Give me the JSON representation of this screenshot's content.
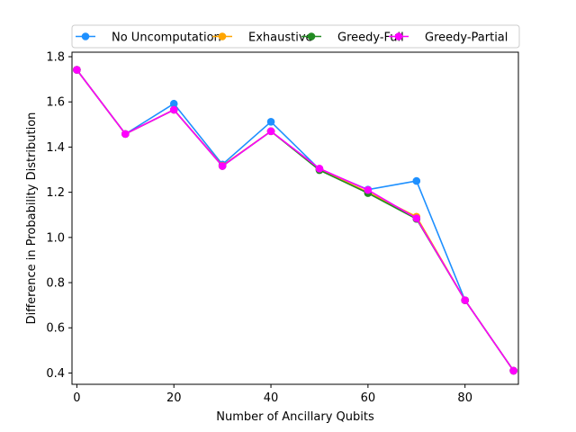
{
  "chart_data": {
    "type": "line",
    "title": "",
    "xlabel": "Number of Ancillary Qubits",
    "ylabel": "Difference in Probability Distribution",
    "xlim": [
      -1,
      91
    ],
    "ylim": [
      0.35,
      1.82
    ],
    "xticks": [
      0,
      20,
      40,
      60,
      80
    ],
    "xtick_labels": [
      "0",
      "20",
      "40",
      "60",
      "80"
    ],
    "yticks": [
      0.4,
      0.6,
      0.8,
      1.0,
      1.2,
      1.4,
      1.6,
      1.8
    ],
    "ytick_labels": [
      "0.4",
      "0.6",
      "0.8",
      "1.0",
      "1.2",
      "1.4",
      "1.6",
      "1.8"
    ],
    "grid": false,
    "legend_position": "top",
    "x": [
      0,
      10,
      20,
      30,
      40,
      50,
      60,
      70,
      80,
      90
    ],
    "series": [
      {
        "name": "No Uncomputation",
        "color": "#1e90ff",
        "values": [
          1.742,
          1.458,
          1.592,
          1.323,
          1.512,
          1.302,
          1.212,
          1.25,
          0.722,
          0.41
        ]
      },
      {
        "name": "Exhaustive",
        "color": "#ffa500",
        "values": [
          1.742,
          1.458,
          1.565,
          1.318,
          1.47,
          1.302,
          1.2,
          1.092,
          0.722,
          0.41
        ]
      },
      {
        "name": "Greedy-Full",
        "color": "#228b22",
        "values": [
          1.742,
          1.458,
          1.565,
          1.316,
          1.47,
          1.298,
          1.196,
          1.082,
          0.722,
          0.41
        ]
      },
      {
        "name": "Greedy-Partial",
        "color": "#ff00ff",
        "values": [
          1.742,
          1.458,
          1.565,
          1.316,
          1.47,
          1.305,
          1.21,
          1.085,
          0.722,
          0.41
        ]
      }
    ]
  }
}
